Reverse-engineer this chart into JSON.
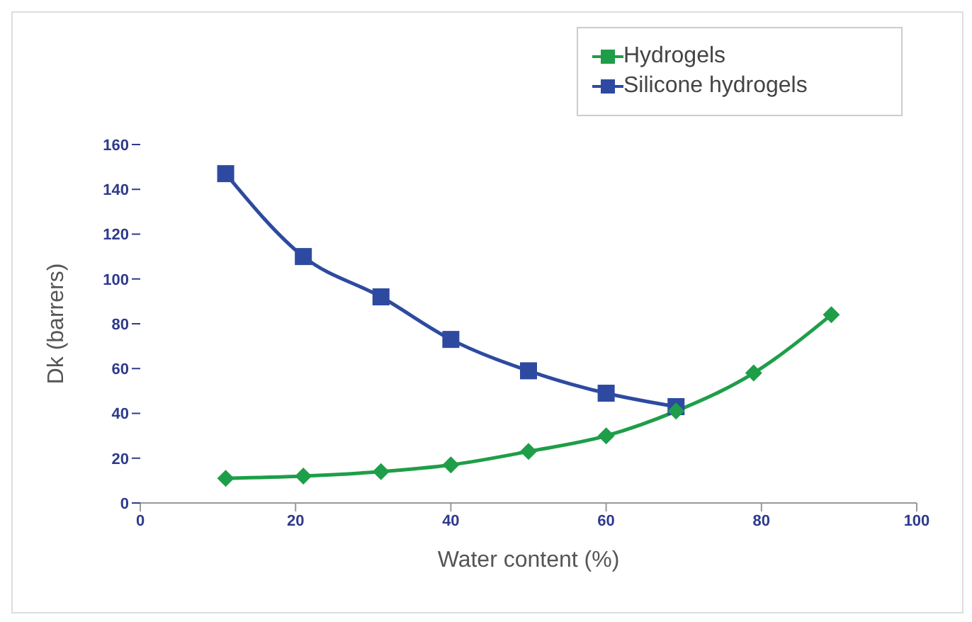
{
  "chart_data": {
    "type": "line",
    "xlabel": "Water content (%)",
    "ylabel": "Dk (barrers)",
    "xlim": [
      0,
      100
    ],
    "xticks": [
      0,
      20,
      40,
      60,
      80,
      100
    ],
    "ylim": [
      0,
      160
    ],
    "yticks": [
      0,
      20,
      40,
      60,
      80,
      100,
      120,
      140,
      160
    ],
    "legend": "top right",
    "grid": false,
    "series": [
      {
        "name": "Hydrogels",
        "color": "#1e9e48",
        "marker": "diamond",
        "x": [
          11,
          21,
          31,
          40,
          50,
          60,
          69,
          79,
          89
        ],
        "values": [
          11,
          12,
          14,
          17,
          23,
          30,
          41,
          58,
          84
        ]
      },
      {
        "name": "Silicone hydrogels",
        "color": "#2e4aa0",
        "marker": "square",
        "x": [
          11,
          21,
          31,
          40,
          50,
          60,
          69
        ],
        "values": [
          147,
          110,
          92,
          73,
          59,
          49,
          43
        ]
      }
    ]
  }
}
